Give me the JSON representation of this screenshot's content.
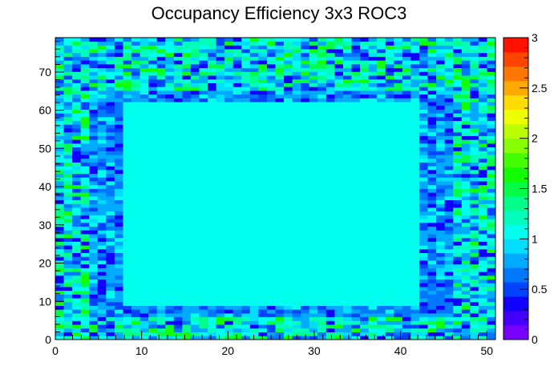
{
  "chart_data": {
    "type": "heatmap",
    "title": "Occupancy Efficiency 3x3 ROC3",
    "xlim": [
      0,
      51
    ],
    "ylim": [
      0,
      79
    ],
    "nx": 52,
    "ny": 80,
    "x_ticks": [
      0,
      10,
      20,
      30,
      40,
      50
    ],
    "y_ticks": [
      0,
      10,
      20,
      30,
      40,
      50,
      60,
      70
    ],
    "z_range": [
      0,
      3
    ],
    "z_ticks": [
      "0",
      "0.5",
      "1",
      "1.5",
      "2",
      "2.5",
      "3"
    ],
    "z_tick_values": [
      0,
      0.5,
      1,
      1.5,
      2,
      2.5,
      3
    ],
    "inner_region": {
      "x": [
        8,
        42
      ],
      "y": [
        9,
        62
      ],
      "value": 1.0
    },
    "grid": false,
    "legend": "colorbar-right",
    "palette": [
      "#7700ff",
      "#4400ff",
      "#1100ff",
      "#0044ff",
      "#0077ff",
      "#00aaff",
      "#00ddff",
      "#00ffee",
      "#00ffbb",
      "#00ff88",
      "#00ff44",
      "#11ff00",
      "#44ff00",
      "#88ff00",
      "#bbff00",
      "#eeff00",
      "#ffdd00",
      "#ffaa00",
      "#ff7700",
      "#ff4400",
      "#ff1100"
    ]
  }
}
